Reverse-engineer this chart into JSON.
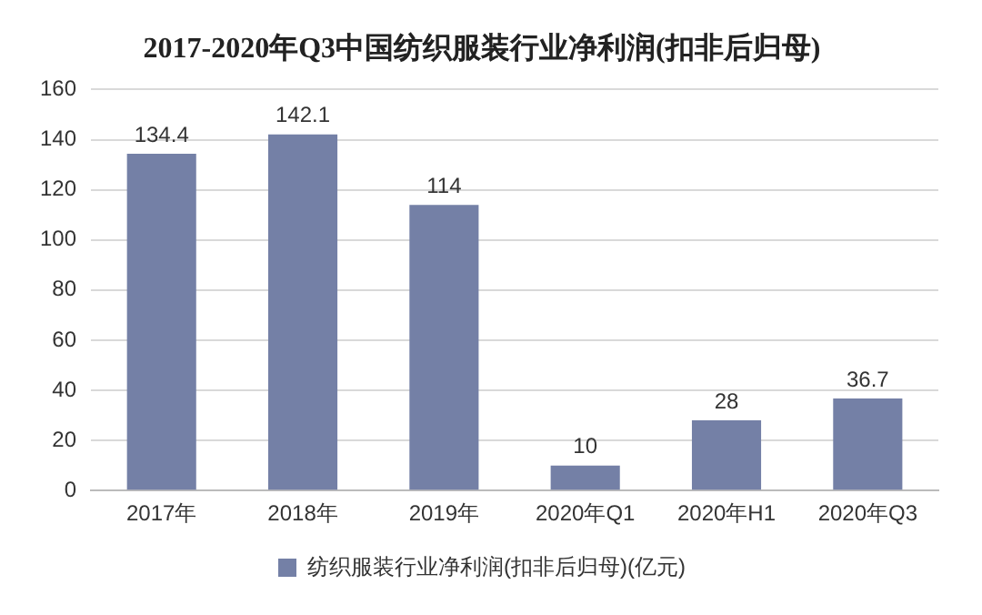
{
  "chart_data": {
    "type": "bar",
    "title": "2017-2020年Q3中国纺织服装行业净利润(扣非后归母)",
    "categories": [
      "2017年",
      "2018年",
      "2019年",
      "2020年Q1",
      "2020年H1",
      "2020年Q3"
    ],
    "series": [
      {
        "name": "纺织服装行业净利润(扣非后归母)(亿元)",
        "color": "#7480a6",
        "values": [
          134.4,
          142.1,
          114,
          10,
          28,
          36.7
        ]
      }
    ],
    "ylim": [
      0,
      160
    ],
    "yticks": [
      0,
      20,
      40,
      60,
      80,
      100,
      120,
      140,
      160
    ],
    "grid": "y",
    "legend": "bottom",
    "data_labels": true
  }
}
